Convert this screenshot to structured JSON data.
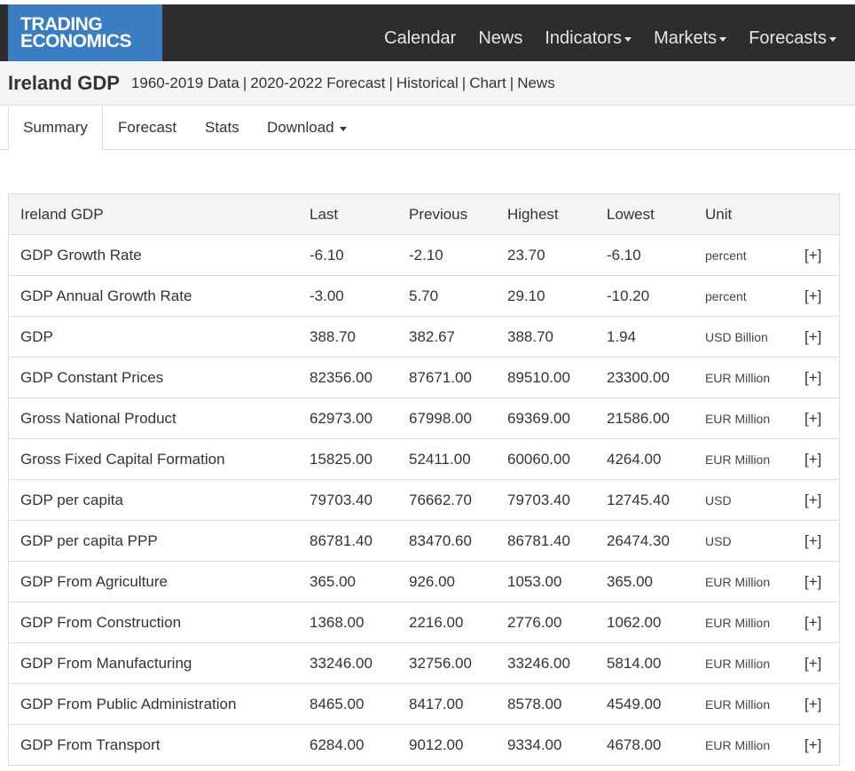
{
  "brand": {
    "line1": "TRADING",
    "line2": "ECONOMICS",
    "bg_color": "#3b7dc3"
  },
  "nav": [
    {
      "label": "Calendar",
      "dropdown": false
    },
    {
      "label": "News",
      "dropdown": false
    },
    {
      "label": "Indicators",
      "dropdown": true
    },
    {
      "label": "Markets",
      "dropdown": true
    },
    {
      "label": "Forecasts",
      "dropdown": true
    }
  ],
  "title": {
    "heading": "Ireland GDP",
    "links": [
      "1960-2019 Data",
      "2020-2022 Forecast",
      "Historical",
      "Chart",
      "News"
    ]
  },
  "tabs": [
    {
      "label": "Summary",
      "active": true
    },
    {
      "label": "Forecast",
      "active": false
    },
    {
      "label": "Stats",
      "active": false
    },
    {
      "label": "Download",
      "active": false,
      "dropdown": true
    }
  ],
  "table": {
    "headers": [
      "Ireland GDP",
      "Last",
      "Previous",
      "Highest",
      "Lowest",
      "Unit"
    ],
    "expand_label": "[+]",
    "rows": [
      [
        "GDP Growth Rate",
        "-6.10",
        "-2.10",
        "23.70",
        "-6.10",
        "percent"
      ],
      [
        "GDP Annual Growth Rate",
        "-3.00",
        "5.70",
        "29.10",
        "-10.20",
        "percent"
      ],
      [
        "GDP",
        "388.70",
        "382.67",
        "388.70",
        "1.94",
        "USD Billion"
      ],
      [
        "GDP Constant Prices",
        "82356.00",
        "87671.00",
        "89510.00",
        "23300.00",
        "EUR Million"
      ],
      [
        "Gross National Product",
        "62973.00",
        "67998.00",
        "69369.00",
        "21586.00",
        "EUR Million"
      ],
      [
        "Gross Fixed Capital Formation",
        "15825.00",
        "52411.00",
        "60060.00",
        "4264.00",
        "EUR Million"
      ],
      [
        "GDP per capita",
        "79703.40",
        "76662.70",
        "79703.40",
        "12745.40",
        "USD"
      ],
      [
        "GDP per capita PPP",
        "86781.40",
        "83470.60",
        "86781.40",
        "26474.30",
        "USD"
      ],
      [
        "GDP From Agriculture",
        "365.00",
        "926.00",
        "1053.00",
        "365.00",
        "EUR Million"
      ],
      [
        "GDP From Construction",
        "1368.00",
        "2216.00",
        "2776.00",
        "1062.00",
        "EUR Million"
      ],
      [
        "GDP From Manufacturing",
        "33246.00",
        "32756.00",
        "33246.00",
        "5814.00",
        "EUR Million"
      ],
      [
        "GDP From Public Administration",
        "8465.00",
        "8417.00",
        "8578.00",
        "4549.00",
        "EUR Million"
      ],
      [
        "GDP From Transport",
        "6284.00",
        "9012.00",
        "9334.00",
        "4678.00",
        "EUR Million"
      ]
    ]
  }
}
